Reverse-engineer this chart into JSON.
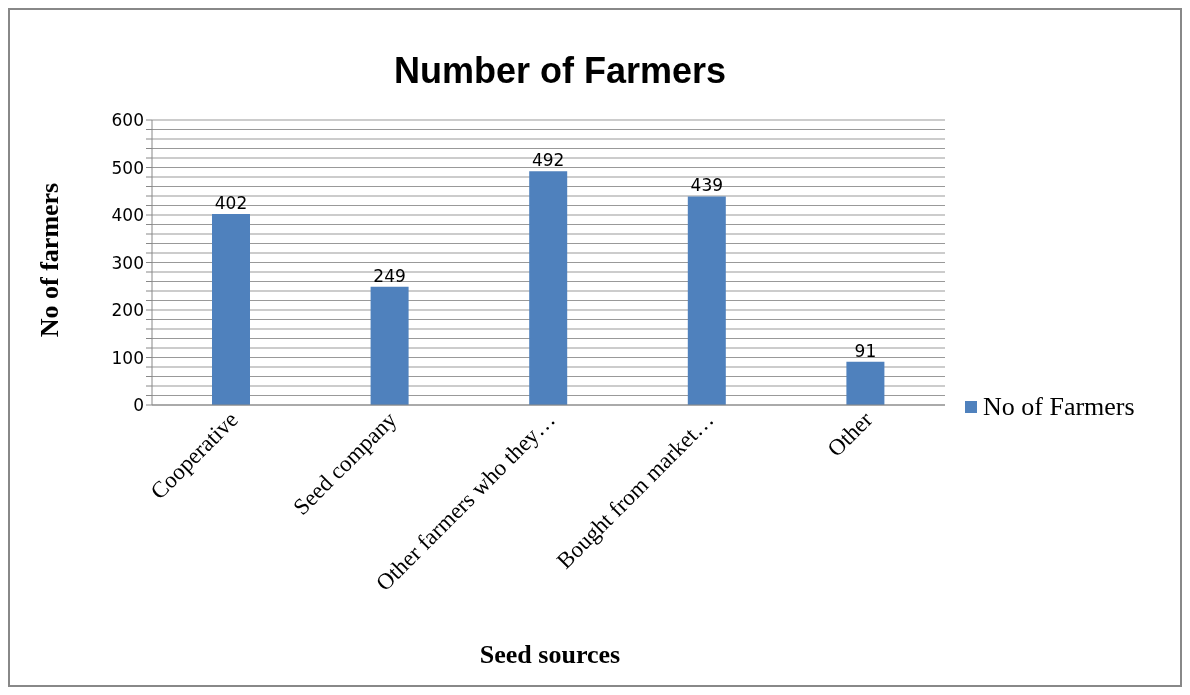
{
  "chart_data": {
    "type": "bar",
    "title": "Number of Farmers",
    "xlabel": "Seed sources",
    "ylabel": "No of farmers",
    "categories": [
      "Cooperative",
      "Seed company",
      "Other farmers who they…",
      "Bought from market…",
      "Other"
    ],
    "series": [
      {
        "name": "No of Farmers",
        "color": "#4f81bd",
        "values": [
          402,
          249,
          492,
          439,
          91
        ]
      }
    ],
    "ylim": [
      0,
      600
    ],
    "yticks": [
      0,
      {
        "value": 20,
        "label": null
      },
      {
        "value": 40,
        "label": null
      },
      {
        "value": 60,
        "label": null
      },
      {
        "value": 80,
        "label": null
      },
      100,
      {
        "value": 120,
        "label": null
      },
      {
        "value": 140,
        "label": null
      },
      {
        "value": 160,
        "label": null
      },
      {
        "value": 180,
        "label": null
      },
      200,
      {
        "value": 220,
        "label": null
      },
      {
        "value": 240,
        "label": null
      },
      {
        "value": 260,
        "label": null
      },
      {
        "value": 280,
        "label": null
      },
      300,
      {
        "value": 320,
        "label": null
      },
      {
        "value": 340,
        "label": null
      },
      {
        "value": 360,
        "label": null
      },
      {
        "value": 380,
        "label": null
      },
      400,
      {
        "value": 420,
        "label": null
      },
      {
        "value": 440,
        "label": null
      },
      {
        "value": 460,
        "label": null
      },
      {
        "value": 480,
        "label": null
      },
      500,
      {
        "value": 520,
        "label": null
      },
      {
        "value": 540,
        "label": null
      },
      {
        "value": 560,
        "label": null
      },
      {
        "value": 580,
        "label": null
      },
      600
    ],
    "grid": "y",
    "legend": "right",
    "data_labels": true
  }
}
